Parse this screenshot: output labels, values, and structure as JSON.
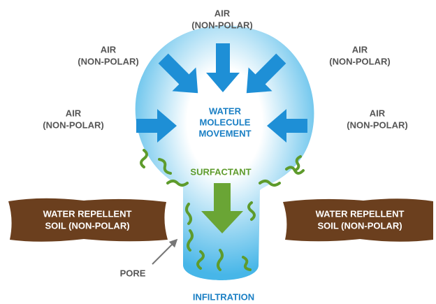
{
  "labels": {
    "air_top": [
      "AIR",
      "(NON-POLAR)"
    ],
    "air_upper_left": [
      "AIR",
      "(NON-POLAR)"
    ],
    "air_upper_right": [
      "AIR",
      "(NON-POLAR)"
    ],
    "air_left": [
      "AIR",
      "(NON-POLAR)"
    ],
    "air_right": [
      "AIR",
      "(NON-POLAR)"
    ],
    "center": [
      "WATER",
      "MOLECULE",
      "MOVEMENT"
    ],
    "surfactant": "SURFACTANT",
    "soil_left": [
      "WATER REPELLENT",
      "SOIL (NON-POLAR)"
    ],
    "soil_right": [
      "WATER REPELLENT",
      "SOIL (NON-POLAR)"
    ],
    "pore": "PORE",
    "infiltration": "INFILTRATION"
  }
}
